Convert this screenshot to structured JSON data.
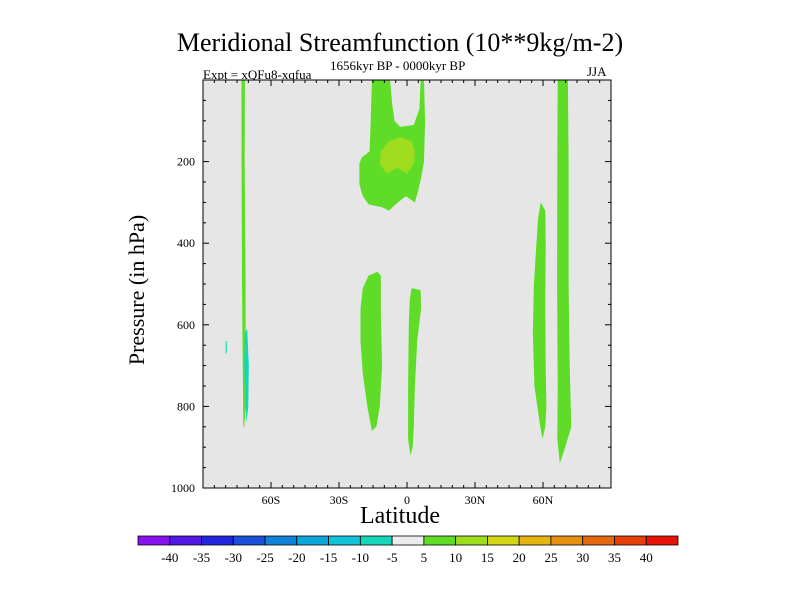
{
  "chart_data": {
    "type": "heatmap",
    "title": "Meridional Streamfunction (10**9kg/m-2)",
    "subtitle_left": "Expt = xQFu8-xqfua",
    "subtitle_center": "1656kyr BP - 0000kyr BP",
    "subtitle_right": "JJA",
    "xlabel": "Latitude",
    "ylabel": "Pressure (in hPa)",
    "xlim": [
      -90,
      90
    ],
    "ylim": [
      1000,
      0
    ],
    "x_ticks": [
      {
        "value": -60,
        "label": "60S"
      },
      {
        "value": -30,
        "label": "30S"
      },
      {
        "value": 0,
        "label": "0"
      },
      {
        "value": 30,
        "label": "30N"
      },
      {
        "value": 60,
        "label": "60N"
      }
    ],
    "y_ticks": [
      {
        "value": 200,
        "label": "200"
      },
      {
        "value": 400,
        "label": "400"
      },
      {
        "value": 600,
        "label": "600"
      },
      {
        "value": 800,
        "label": "800"
      },
      {
        "value": 1000,
        "label": "1000"
      }
    ],
    "background_color": "#e6e6e6",
    "contour_regions": [
      {
        "level": "5 to 10",
        "color": "#5fdc28",
        "outline": [
          [
            -73,
            0
          ],
          [
            -71.5,
            0
          ],
          [
            -71.6,
            200
          ],
          [
            -71.2,
            500
          ],
          [
            -71.2,
            800
          ],
          [
            -71.8,
            850
          ],
          [
            -72.2,
            850
          ],
          [
            -72.8,
            500
          ],
          [
            -73,
            200
          ]
        ]
      },
      {
        "level": "-10 to -5",
        "color": "#16d6ba",
        "outline": [
          [
            -71.5,
            620
          ],
          [
            -70.5,
            610
          ],
          [
            -69.8,
            700
          ],
          [
            -70,
            800
          ],
          [
            -70.8,
            840
          ],
          [
            -71.4,
            790
          ],
          [
            -71.8,
            700
          ]
        ]
      },
      {
        "level": "-10 to -5",
        "color": "#16d6ba",
        "outline": [
          [
            -80,
            640
          ],
          [
            -79.5,
            640
          ],
          [
            -79.5,
            670
          ],
          [
            -80,
            670
          ]
        ]
      },
      {
        "level": "5 to 10",
        "color": "#5fdc28",
        "outline": [
          [
            -15.5,
            0
          ],
          [
            -7.5,
            0
          ],
          [
            -6.5,
            60
          ],
          [
            -5.5,
            100
          ],
          [
            -3,
            115
          ],
          [
            3,
            110
          ],
          [
            5.5,
            70
          ],
          [
            6,
            0
          ],
          [
            7.5,
            0
          ],
          [
            8,
            100
          ],
          [
            7.5,
            200
          ],
          [
            6.2,
            240
          ],
          [
            5,
            270
          ],
          [
            3.5,
            300
          ],
          [
            -0.5,
            285
          ],
          [
            -4,
            300
          ],
          [
            -8,
            320
          ],
          [
            -11,
            312
          ],
          [
            -17,
            305
          ],
          [
            -19.5,
            285
          ],
          [
            -21,
            255
          ],
          [
            -21,
            205
          ],
          [
            -20,
            190
          ],
          [
            -16.5,
            175
          ],
          [
            -16,
            100
          ]
        ]
      },
      {
        "level": "10 to 15",
        "color": "#a0dc1e",
        "outline": [
          [
            -11.5,
            175
          ],
          [
            -8,
            150
          ],
          [
            -3,
            140
          ],
          [
            2,
            150
          ],
          [
            3.5,
            175
          ],
          [
            3,
            205
          ],
          [
            0,
            230
          ],
          [
            -4,
            215
          ],
          [
            -9,
            230
          ],
          [
            -12,
            205
          ]
        ]
      },
      {
        "level": "5 to 10",
        "color": "#5fdc28",
        "outline": [
          [
            -20.5,
            560
          ],
          [
            -19.5,
            510
          ],
          [
            -17,
            480
          ],
          [
            -13,
            470
          ],
          [
            -11.5,
            480
          ],
          [
            -11.5,
            580
          ],
          [
            -11,
            700
          ],
          [
            -12,
            800
          ],
          [
            -13.5,
            850
          ],
          [
            -15.5,
            860
          ],
          [
            -17.5,
            800
          ],
          [
            -19.5,
            720
          ],
          [
            -20.5,
            640
          ]
        ]
      },
      {
        "level": "5 to 10",
        "color": "#5fdc28",
        "outline": [
          [
            2,
            510
          ],
          [
            6,
            515
          ],
          [
            6.2,
            560
          ],
          [
            4.5,
            640
          ],
          [
            3.5,
            750
          ],
          [
            3,
            850
          ],
          [
            2.5,
            900
          ],
          [
            1.5,
            920
          ],
          [
            0.5,
            880
          ],
          [
            0.5,
            750
          ],
          [
            0.8,
            600
          ],
          [
            1.2,
            540
          ]
        ]
      },
      {
        "level": "5 to 10",
        "color": "#5fdc28",
        "outline": [
          [
            59,
            300
          ],
          [
            61,
            320
          ],
          [
            61.2,
            400
          ],
          [
            61,
            550
          ],
          [
            61.2,
            700
          ],
          [
            61.5,
            800
          ],
          [
            61,
            850
          ],
          [
            59.8,
            880
          ],
          [
            58.8,
            850
          ],
          [
            56.2,
            750
          ],
          [
            55.5,
            620
          ],
          [
            56,
            500
          ],
          [
            57.8,
            340
          ]
        ]
      },
      {
        "level": "5 to 10",
        "color": "#5fdc28",
        "outline": [
          [
            66.5,
            0
          ],
          [
            71,
            0
          ],
          [
            71.3,
            200
          ],
          [
            71.3,
            500
          ],
          [
            71.8,
            700
          ],
          [
            72.5,
            850
          ],
          [
            69.8,
            900
          ],
          [
            67.4,
            940
          ],
          [
            66.3,
            880
          ],
          [
            66.5,
            750
          ],
          [
            66.2,
            500
          ],
          [
            66.3,
            200
          ]
        ]
      }
    ],
    "colorbar": {
      "levels": [
        "-40",
        "-35",
        "-30",
        "-25",
        "-20",
        "-15",
        "-10",
        "-5",
        "5",
        "10",
        "15",
        "20",
        "25",
        "30",
        "35",
        "40"
      ],
      "colors": [
        "#8812ee",
        "#5418e6",
        "#2424dc",
        "#1c50d8",
        "#1282d8",
        "#0ca6d8",
        "#12c2d8",
        "#16d6ba",
        "#ececec",
        "#5fdc28",
        "#a0dc1e",
        "#d2d614",
        "#e6b40e",
        "#e69010",
        "#e66810",
        "#e6400a",
        "#e61408"
      ]
    }
  }
}
